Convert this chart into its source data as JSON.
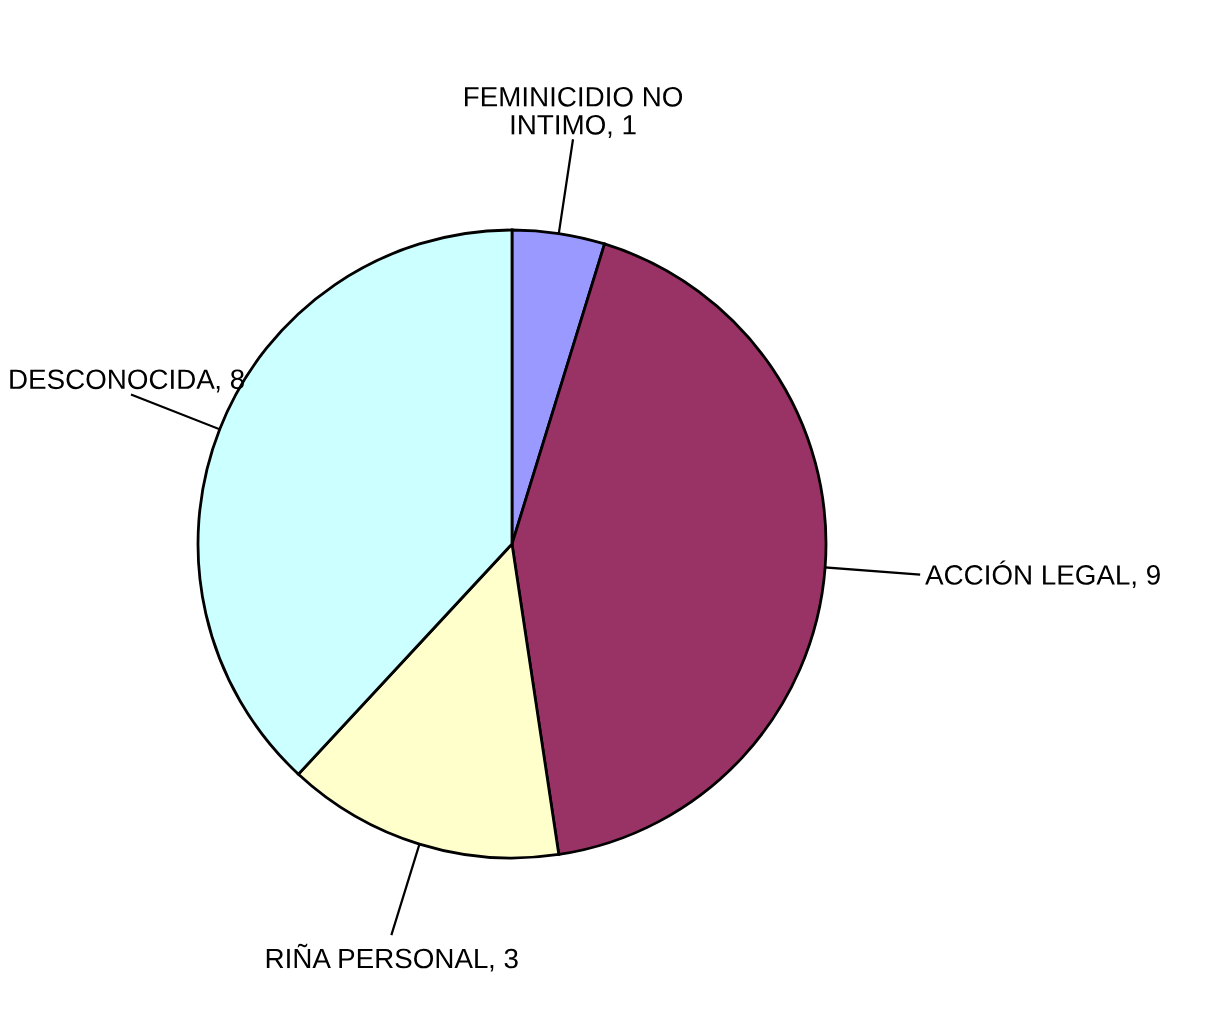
{
  "chart_data": {
    "type": "pie",
    "categories": [
      "FEMINICIDIO NO\nINTIMO",
      "ACCIÓN LEGAL",
      "RIÑA PERSONAL",
      "DESCONOCIDA"
    ],
    "values": [
      1,
      9,
      3,
      8
    ],
    "colors": [
      "#9999ff",
      "#993366",
      "#ffffcc",
      "#ccffff"
    ],
    "value_labels": [
      ", 1",
      ", 9",
      ", 3",
      ", 8"
    ]
  }
}
